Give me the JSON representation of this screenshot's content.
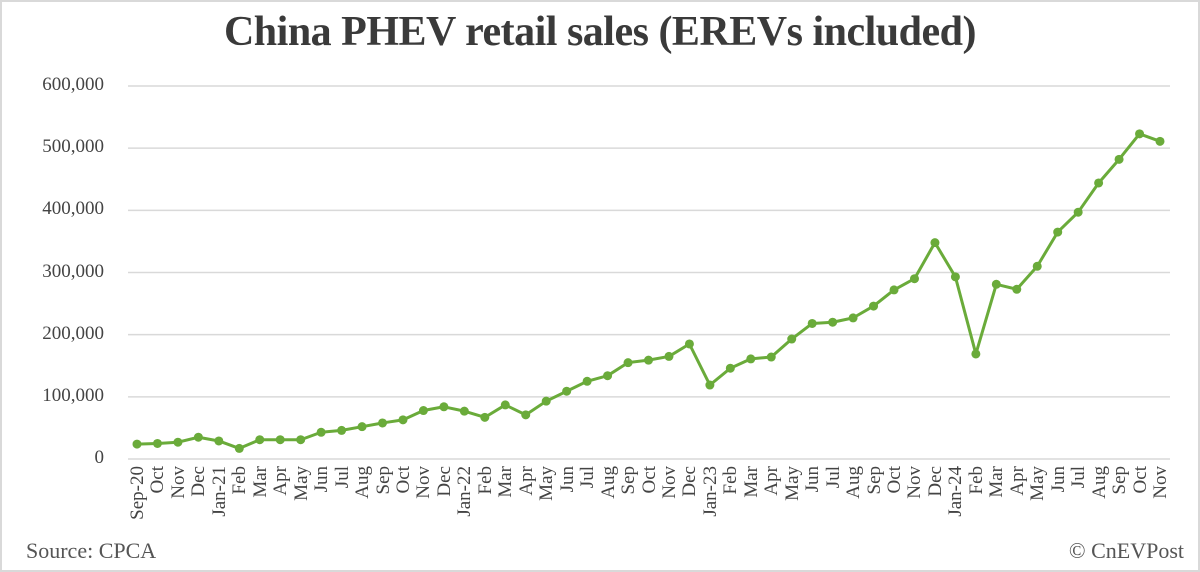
{
  "title": "China PHEV retail sales (EREVs included)",
  "footer": {
    "source": "Source: CPCA",
    "copyright": "© CnEVPost"
  },
  "colors": {
    "line": "#6aab3a",
    "grid": "#d9d9d9",
    "text": "#444444"
  },
  "chart_data": {
    "type": "line",
    "title": "China PHEV retail sales (EREVs included)",
    "xlabel": "",
    "ylabel": "",
    "ylim": [
      0,
      600000
    ],
    "yticks": [
      "0",
      "100,000",
      "200,000",
      "300,000",
      "400,000",
      "500,000",
      "600,000"
    ],
    "grid": true,
    "legend": null,
    "categories": [
      "Sep-20",
      "Oct",
      "Nov",
      "Dec",
      "Jan-21",
      "Feb",
      "Mar",
      "Apr",
      "May",
      "Jun",
      "Jul",
      "Aug",
      "Sep",
      "Oct",
      "Nov",
      "Dec",
      "Jan-22",
      "Feb",
      "Mar",
      "Apr",
      "May",
      "Jun",
      "Jul",
      "Aug",
      "Sep",
      "Oct",
      "Nov",
      "Dec",
      "Jan-23",
      "Feb",
      "Mar",
      "Apr",
      "May",
      "Jun",
      "Jul",
      "Aug",
      "Sep",
      "Oct",
      "Nov",
      "Dec",
      "Jan-24",
      "Feb",
      "Mar",
      "Apr",
      "May",
      "Jun",
      "Jul",
      "Aug",
      "Sep",
      "Oct",
      "Nov"
    ],
    "series": [
      {
        "name": "PHEV retail sales",
        "values": [
          24000,
          25000,
          27000,
          35000,
          29000,
          17000,
          31000,
          31000,
          31000,
          43000,
          46000,
          52000,
          58000,
          63000,
          78000,
          84000,
          77000,
          67000,
          87000,
          71000,
          93000,
          109000,
          125000,
          134000,
          155000,
          159000,
          165000,
          185000,
          119000,
          146000,
          161000,
          164000,
          193000,
          218000,
          220000,
          227000,
          246000,
          272000,
          290000,
          348000,
          293000,
          169000,
          281000,
          273000,
          310000,
          365000,
          397000,
          444000,
          482000,
          523000,
          511000
        ]
      }
    ],
    "source": "Source: CPCA",
    "watermark": "© CnEVPost"
  }
}
